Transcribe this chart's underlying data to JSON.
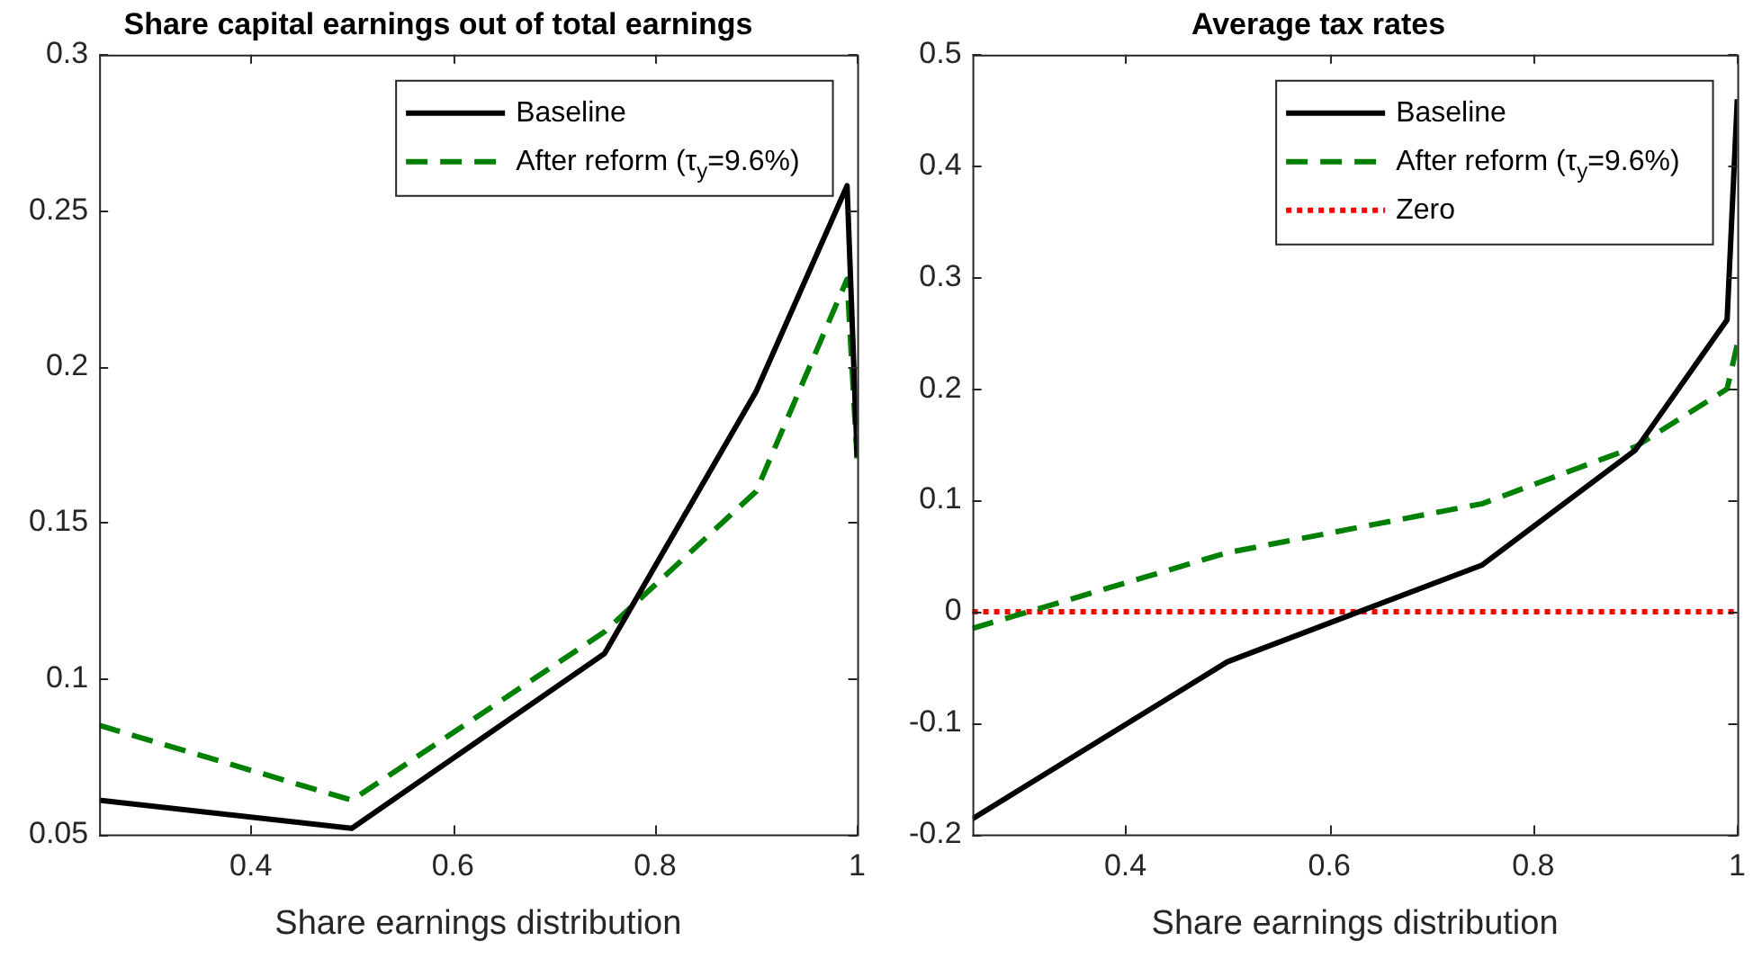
{
  "chart_data": [
    {
      "type": "line",
      "title": "Share capital earnings out of total earnings",
      "xlabel": "Share earnings distribution",
      "x": [
        0.25,
        0.5,
        0.75,
        0.9,
        0.99,
        1
      ],
      "xlim": [
        0.25,
        1
      ],
      "xticks": [
        0.4,
        0.6,
        0.8,
        1
      ],
      "ylim": [
        0.05,
        0.3
      ],
      "yticks": [
        0.05,
        0.1,
        0.15,
        0.2,
        0.25,
        0.3
      ],
      "grid": false,
      "legend": "top right",
      "series": [
        {
          "name": "Baseline",
          "color": "#000000",
          "line_style": "solid",
          "values": [
            0.061,
            0.052,
            0.108,
            0.192,
            0.258,
            0.171
          ]
        },
        {
          "name": "After reform (τ$_{y}$=9.6%)",
          "color": "#008000",
          "line_style": "dashed",
          "values": [
            0.085,
            0.061,
            0.115,
            0.16,
            0.228,
            0.17
          ]
        }
      ]
    },
    {
      "type": "line",
      "title": "Average tax rates",
      "xlabel": "Share earnings distribution",
      "x": [
        0.25,
        0.5,
        0.75,
        0.9,
        0.99,
        1
      ],
      "xlim": [
        0.25,
        1
      ],
      "xticks": [
        0.4,
        0.6,
        0.8,
        1
      ],
      "ylim": [
        -0.2,
        0.5
      ],
      "yticks": [
        -0.2,
        -0.1,
        0,
        0.1,
        0.2,
        0.3,
        0.4,
        0.5
      ],
      "grid": false,
      "legend": "top right",
      "series": [
        {
          "name": "Baseline",
          "color": "#000000",
          "line_style": "solid",
          "values": [
            -0.186,
            -0.045,
            0.042,
            0.145,
            0.262,
            0.46
          ]
        },
        {
          "name": "After reform (τ$_{y}$=9.6%)",
          "color": "#008000",
          "line_style": "dashed",
          "values": [
            -0.015,
            0.053,
            0.097,
            0.148,
            0.2,
            0.24
          ]
        }
      ],
      "ref_lines": [
        {
          "axis": "y",
          "value": 0,
          "label": "Zero",
          "color": "#ff0000",
          "line_style": "dotted"
        }
      ]
    }
  ]
}
